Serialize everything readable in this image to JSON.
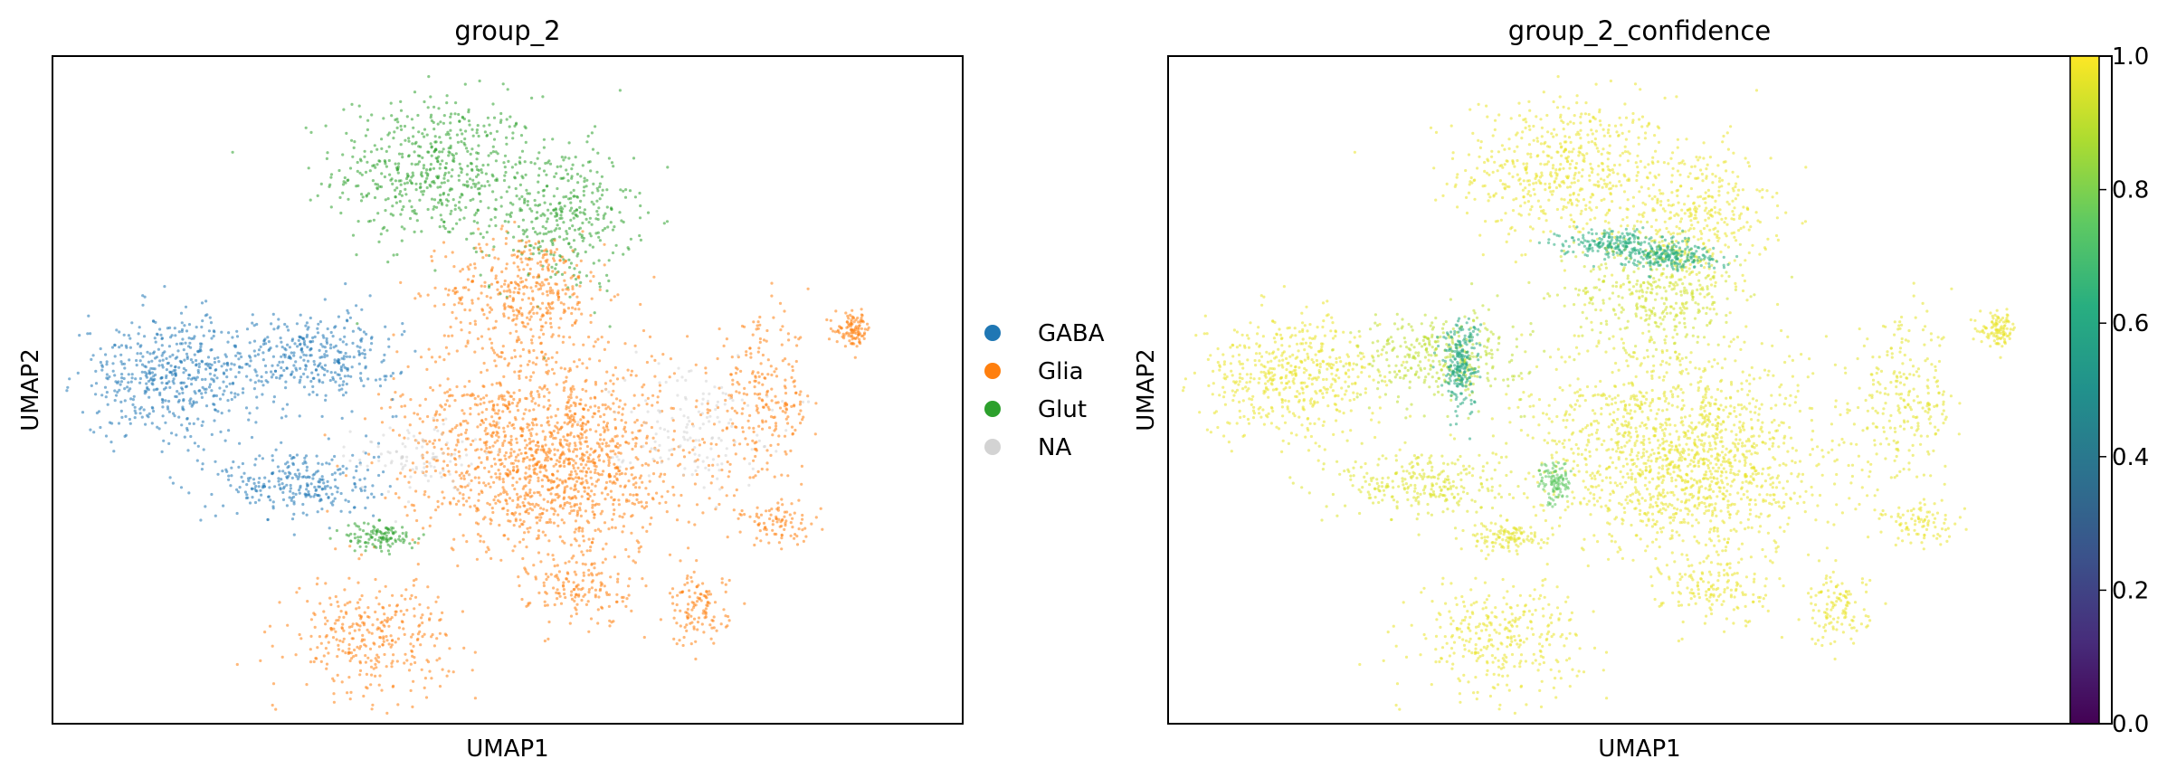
{
  "chart_data": [
    {
      "type": "scatter",
      "title": "group_2",
      "xlabel": "UMAP1",
      "ylabel": "UMAP2",
      "grid": false,
      "legend_position": "right",
      "legend": [
        {
          "label": "GABA",
          "color": "#1f77b4"
        },
        {
          "label": "Glia",
          "color": "#ff7f0e"
        },
        {
          "label": "Glut",
          "color": "#2ca02c"
        },
        {
          "label": "NA",
          "color": "#d3d3d3"
        }
      ],
      "clusters": [
        {
          "category": "Glut",
          "cx": 0.42,
          "cy": 0.83,
          "rx": 0.1,
          "ry": 0.1,
          "density": 0.9
        },
        {
          "category": "Glut",
          "cx": 0.56,
          "cy": 0.76,
          "rx": 0.07,
          "ry": 0.1,
          "density": 0.7
        },
        {
          "category": "Glia",
          "cx": 0.52,
          "cy": 0.65,
          "rx": 0.08,
          "ry": 0.08,
          "density": 0.8
        },
        {
          "category": "Glia",
          "cx": 0.53,
          "cy": 0.45,
          "rx": 0.14,
          "ry": 0.13,
          "density": 1.0
        },
        {
          "category": "Glia",
          "cx": 0.56,
          "cy": 0.36,
          "rx": 0.14,
          "ry": 0.1,
          "density": 1.0
        },
        {
          "category": "Glia",
          "cx": 0.78,
          "cy": 0.48,
          "rx": 0.05,
          "ry": 0.11,
          "density": 0.5
        },
        {
          "category": "Glia",
          "cx": 0.88,
          "cy": 0.59,
          "rx": 0.018,
          "ry": 0.022,
          "density": 0.9
        },
        {
          "category": "Glia",
          "cx": 0.35,
          "cy": 0.13,
          "rx": 0.08,
          "ry": 0.08,
          "density": 0.7
        },
        {
          "category": "Glia",
          "cx": 0.58,
          "cy": 0.2,
          "rx": 0.05,
          "ry": 0.05,
          "density": 0.5
        },
        {
          "category": "Glia",
          "cx": 0.71,
          "cy": 0.17,
          "rx": 0.03,
          "ry": 0.05,
          "density": 0.5
        },
        {
          "category": "Glia",
          "cx": 0.8,
          "cy": 0.3,
          "rx": 0.04,
          "ry": 0.03,
          "density": 0.4
        },
        {
          "category": "GABA",
          "cx": 0.13,
          "cy": 0.52,
          "rx": 0.09,
          "ry": 0.08,
          "density": 1.0
        },
        {
          "category": "GABA",
          "cx": 0.29,
          "cy": 0.55,
          "rx": 0.08,
          "ry": 0.06,
          "density": 0.8
        },
        {
          "category": "GABA",
          "cx": 0.27,
          "cy": 0.36,
          "rx": 0.08,
          "ry": 0.05,
          "density": 0.7
        },
        {
          "category": "Glut",
          "cx": 0.36,
          "cy": 0.28,
          "rx": 0.035,
          "ry": 0.02,
          "density": 0.7
        },
        {
          "category": "NA",
          "cx": 0.4,
          "cy": 0.4,
          "rx": 0.06,
          "ry": 0.05,
          "density": 0.3
        },
        {
          "category": "NA",
          "cx": 0.7,
          "cy": 0.45,
          "rx": 0.08,
          "ry": 0.08,
          "density": 0.3
        }
      ]
    },
    {
      "type": "scatter",
      "title": "group_2_confidence",
      "xlabel": "UMAP1",
      "ylabel": "UMAP2",
      "grid": false,
      "colormap": "viridis",
      "colorbar": {
        "range": [
          0.0,
          1.0
        ],
        "ticks": [
          "0.0",
          "0.2",
          "0.4",
          "0.6",
          "0.8",
          "1.0"
        ],
        "tick_values": [
          0.0,
          0.2,
          0.4,
          0.6,
          0.8,
          1.0
        ]
      },
      "clusters": [
        {
          "value": 0.97,
          "cx": 0.42,
          "cy": 0.83,
          "rx": 0.1,
          "ry": 0.1,
          "density": 0.9
        },
        {
          "value": 0.97,
          "cx": 0.56,
          "cy": 0.76,
          "rx": 0.07,
          "ry": 0.1,
          "density": 0.7
        },
        {
          "value": 0.93,
          "cx": 0.52,
          "cy": 0.65,
          "rx": 0.08,
          "ry": 0.08,
          "density": 0.8
        },
        {
          "value": 0.96,
          "cx": 0.53,
          "cy": 0.45,
          "rx": 0.14,
          "ry": 0.13,
          "density": 1.0
        },
        {
          "value": 0.97,
          "cx": 0.56,
          "cy": 0.36,
          "rx": 0.14,
          "ry": 0.1,
          "density": 1.0
        },
        {
          "value": 0.96,
          "cx": 0.78,
          "cy": 0.48,
          "rx": 0.05,
          "ry": 0.11,
          "density": 0.5
        },
        {
          "value": 0.97,
          "cx": 0.88,
          "cy": 0.59,
          "rx": 0.018,
          "ry": 0.022,
          "density": 0.9
        },
        {
          "value": 0.97,
          "cx": 0.35,
          "cy": 0.13,
          "rx": 0.08,
          "ry": 0.08,
          "density": 0.7
        },
        {
          "value": 0.97,
          "cx": 0.58,
          "cy": 0.2,
          "rx": 0.05,
          "ry": 0.05,
          "density": 0.5
        },
        {
          "value": 0.97,
          "cx": 0.71,
          "cy": 0.17,
          "rx": 0.03,
          "ry": 0.05,
          "density": 0.5
        },
        {
          "value": 0.97,
          "cx": 0.8,
          "cy": 0.3,
          "rx": 0.04,
          "ry": 0.03,
          "density": 0.4
        },
        {
          "value": 0.97,
          "cx": 0.13,
          "cy": 0.52,
          "rx": 0.09,
          "ry": 0.08,
          "density": 1.0
        },
        {
          "value": 0.9,
          "cx": 0.29,
          "cy": 0.55,
          "rx": 0.08,
          "ry": 0.06,
          "density": 0.8
        },
        {
          "value": 0.95,
          "cx": 0.27,
          "cy": 0.36,
          "rx": 0.08,
          "ry": 0.05,
          "density": 0.7
        },
        {
          "value": 0.96,
          "cx": 0.36,
          "cy": 0.28,
          "rx": 0.035,
          "ry": 0.02,
          "density": 0.7
        },
        {
          "value": 0.62,
          "cx": 0.47,
          "cy": 0.72,
          "rx": 0.05,
          "ry": 0.018,
          "density": 1.0
        },
        {
          "value": 0.62,
          "cx": 0.53,
          "cy": 0.7,
          "rx": 0.05,
          "ry": 0.018,
          "density": 1.0
        },
        {
          "value": 0.6,
          "cx": 0.31,
          "cy": 0.54,
          "rx": 0.018,
          "ry": 0.06,
          "density": 1.0
        },
        {
          "value": 0.75,
          "cx": 0.41,
          "cy": 0.36,
          "rx": 0.015,
          "ry": 0.03,
          "density": 0.8
        }
      ]
    }
  ]
}
